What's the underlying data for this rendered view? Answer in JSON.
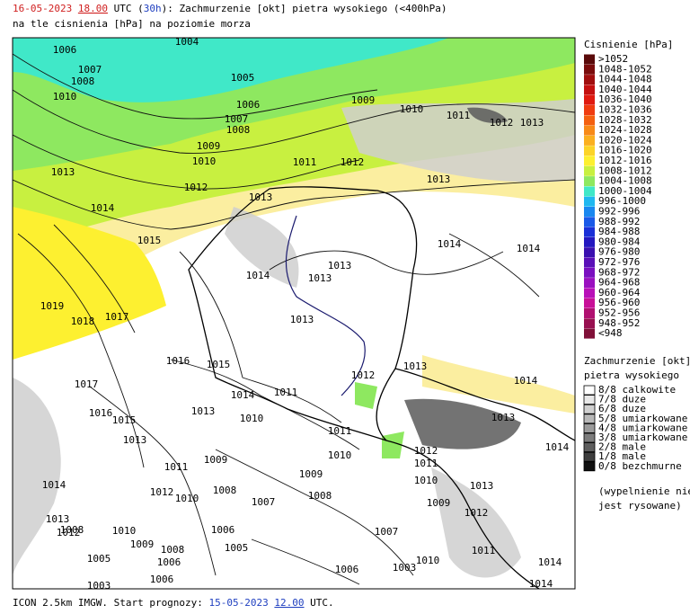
{
  "header": {
    "line1": [
      {
        "text": "16-05-2023",
        "color": "#d02020"
      },
      {
        "text": " ",
        "color": "#000000"
      },
      {
        "text": "18.00",
        "color": "#d02020",
        "underline": true
      },
      {
        "text": " UTC (",
        "color": "#000000"
      },
      {
        "text": "30h",
        "color": "#2040c0"
      },
      {
        "text": "): Zachmurzenie [okt] pietra wysokiego (<400hPa)",
        "color": "#000000"
      }
    ],
    "line2": "na tle cisnienia [hPa] na poziomie morza"
  },
  "pressure_legend": {
    "title": "Cisnienie [hPa]",
    "entries": [
      {
        "label": ">1052",
        "color": "#5a0a0a"
      },
      {
        "label": "1048-1052",
        "color": "#7a0c0c"
      },
      {
        "label": "1044-1048",
        "color": "#a00e0e"
      },
      {
        "label": "1040-1044",
        "color": "#c41010"
      },
      {
        "label": "1036-1040",
        "color": "#e01a10"
      },
      {
        "label": "1032-1036",
        "color": "#f03c10"
      },
      {
        "label": "1028-1032",
        "color": "#f46010"
      },
      {
        "label": "1024-1028",
        "color": "#f88a18"
      },
      {
        "label": "1020-1024",
        "color": "#fbb020"
      },
      {
        "label": "1016-1020",
        "color": "#fcd428"
      },
      {
        "label": "1012-1016",
        "color": "#fdf030"
      },
      {
        "label": "1008-1012",
        "color": "#c8f040"
      },
      {
        "label": "1004-1008",
        "color": "#8ee860"
      },
      {
        "label": "1000-1004",
        "color": "#40e8c8"
      },
      {
        "label": "996-1000",
        "color": "#20b8f0"
      },
      {
        "label": "992-996",
        "color": "#1a88f0"
      },
      {
        "label": "988-992",
        "color": "#1a5ae8"
      },
      {
        "label": "984-988",
        "color": "#1a30d8"
      },
      {
        "label": "980-984",
        "color": "#2418c0"
      },
      {
        "label": "976-980",
        "color": "#3a10b0"
      },
      {
        "label": "972-976",
        "color": "#5a10b8"
      },
      {
        "label": "968-972",
        "color": "#7a10c0"
      },
      {
        "label": "964-968",
        "color": "#9a10c0"
      },
      {
        "label": "960-964",
        "color": "#b810b8"
      },
      {
        "label": "956-960",
        "color": "#c81098"
      },
      {
        "label": "952-956",
        "color": "#b01070"
      },
      {
        "label": "948-952",
        "color": "#981050"
      },
      {
        "label": "<948",
        "color": "#801038"
      }
    ]
  },
  "cloud_legend": {
    "title": "Zachmurzenie [okt]",
    "subtitle": "pietra wysokiego",
    "entries": [
      {
        "label": "8/8 calkowite",
        "color": "#ffffff"
      },
      {
        "label": "7/8 duze",
        "color": "#e8e8e8"
      },
      {
        "label": "6/8 duze",
        "color": "#d0d0d0"
      },
      {
        "label": "5/8 umiarkowane",
        "color": "#b8b8b8"
      },
      {
        "label": "4/8 umiarkowane",
        "color": "#9a9a9a"
      },
      {
        "label": "3/8 umiarkowane",
        "color": "#7c7c7c"
      },
      {
        "label": "2/8 male",
        "color": "#5e5e5e"
      },
      {
        "label": "1/8 male",
        "color": "#3e3e3e"
      },
      {
        "label": "0/8 bezchmurne",
        "color": "#101010"
      }
    ],
    "note": [
      "(wypelnienie nie",
      "jest rysowane)"
    ]
  },
  "isobar_labels": [
    "1004",
    "1006",
    "1007",
    "1008",
    "1010",
    "1005",
    "1006",
    "1007",
    "1008",
    "1009",
    "1010",
    "1011",
    "1012",
    "1013",
    "1009",
    "1010",
    "1011",
    "1012",
    "1012",
    "1013",
    "1013",
    "1013",
    "1014",
    "1015",
    "1014",
    "1014",
    "1013",
    "1013",
    "1014",
    "1019",
    "1018",
    "1017",
    "1013",
    "1016",
    "1015",
    "1012",
    "1013",
    "1014",
    "1017",
    "1016",
    "1015",
    "1014",
    "1011",
    "1013",
    "1010",
    "1011",
    "1013",
    "1014",
    "1012",
    "1011",
    "1010",
    "1013",
    "1009",
    "1012",
    "1011",
    "1014",
    "1014",
    "1007",
    "1008",
    "1009",
    "1010",
    "1009",
    "1008",
    "1007",
    "1006",
    "1005",
    "1006",
    "1003",
    "1010",
    "1013",
    "1011",
    "1012",
    "1010",
    "1014",
    "1013",
    "1012",
    "1008",
    "1010",
    "1009",
    "1008",
    "1006",
    "1005",
    "1003",
    "1006"
  ],
  "footer": [
    {
      "text": "ICON 2.5km IMGW. Start prognozy: ",
      "color": "#000000"
    },
    {
      "text": "15-05-2023",
      "color": "#2040c0"
    },
    {
      "text": " ",
      "color": "#000000"
    },
    {
      "text": "12.00",
      "color": "#2040c0",
      "underline": true
    },
    {
      "text": " UTC.",
      "color": "#000000"
    }
  ]
}
